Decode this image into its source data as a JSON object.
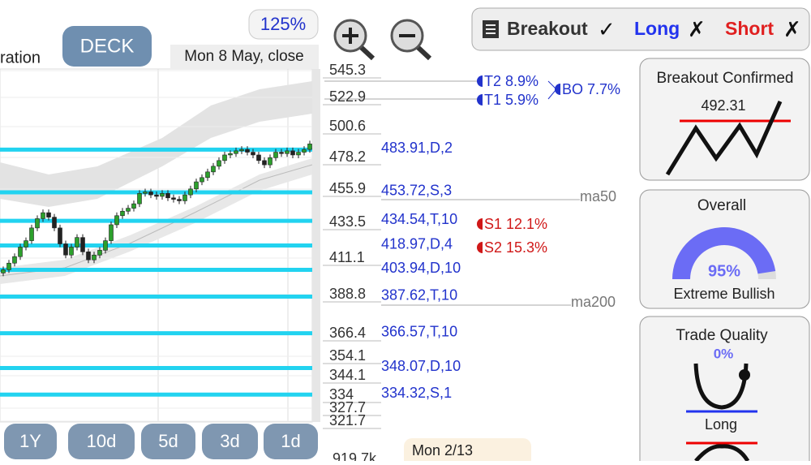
{
  "toolbar": {
    "partial_label": "ration",
    "deck": "DECK",
    "zoom": "125%",
    "date": "Mon 8 May, close"
  },
  "modes": [
    {
      "label": "Breakout",
      "mark": "✓"
    },
    {
      "label": "Long",
      "mark": "✗"
    },
    {
      "label": "Short",
      "mark": "✗"
    }
  ],
  "price_axis": {
    "ticks": [
      545.3,
      522.9,
      500.6,
      478.2,
      455.9,
      433.5,
      411.1,
      388.8,
      366.4,
      354.1,
      344.1,
      334,
      327.7,
      321.7
    ]
  },
  "levels": [
    {
      "value": 483.91,
      "label": "483.91,D,2"
    },
    {
      "value": 453.72,
      "label": "453.72,S,3"
    },
    {
      "value": 434.54,
      "label": "434.54,T,10"
    },
    {
      "value": 418.97,
      "label": "418.97,D,4"
    },
    {
      "value": 403.94,
      "label": "403.94,D,10"
    },
    {
      "value": 387.62,
      "label": "387.62,T,10"
    },
    {
      "value": 366.57,
      "label": "366.57,T,10"
    },
    {
      "value": 348.07,
      "label": "348.07,D,10"
    },
    {
      "value": 334.32,
      "label": "334.32,S,1"
    }
  ],
  "targets": {
    "t2": "T2 8.9%",
    "t1": "T1 5.9%",
    "bo": "BO 7.7%",
    "s1": "S1 12.1%",
    "s2": "S2 15.3%"
  },
  "moving_averages": {
    "ma50": "ma50",
    "ma200": "ma200"
  },
  "candles": {
    "open0": 402,
    "closes": [
      404,
      408,
      412,
      418,
      422,
      430,
      436,
      440,
      437,
      430,
      420,
      413,
      418,
      424,
      415,
      410,
      413,
      416,
      422,
      432,
      438,
      441,
      443,
      446,
      453,
      454,
      452,
      451,
      453,
      450,
      449,
      448,
      452,
      456,
      461,
      464,
      468,
      472,
      476,
      480,
      481,
      483,
      484,
      482,
      480,
      476,
      473,
      478,
      482,
      481,
      483,
      480,
      482,
      484,
      488
    ]
  },
  "periods": [
    "1Y",
    "10d",
    "5d",
    "3d",
    "1d"
  ],
  "footer": {
    "volume": "919.7k",
    "date": "Mon 2/13"
  },
  "cards": {
    "breakout": {
      "title": "Breakout Confirmed",
      "price": "492.31"
    },
    "overall": {
      "title": "Overall",
      "gauge": {
        "value": 95,
        "label": "95%"
      },
      "verdict": "Extreme Bullish"
    },
    "quality": {
      "title": "Trade Quality",
      "score": "0%",
      "side": "Long"
    }
  }
}
